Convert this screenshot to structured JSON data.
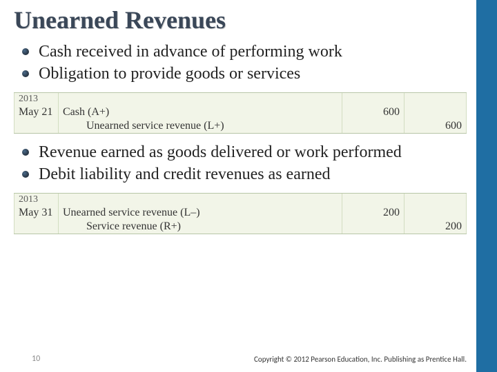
{
  "title": "Unearned Revenues",
  "bullets_top": [
    "Cash received in advance of performing work",
    "Obligation to provide goods or services"
  ],
  "journal1": {
    "year": "2013",
    "date": "May 21",
    "line1_desc": "Cash     (A+)",
    "line1_debit": "600",
    "line2_desc": "Unearned service revenue       (L+)",
    "line2_credit": "600"
  },
  "bullets_mid": [
    "Revenue earned as goods delivered or work performed",
    "Debit liability and credit revenues as earned"
  ],
  "journal2": {
    "year": "2013",
    "date": "May 31",
    "line1_desc": "Unearned service revenue       (L–)",
    "line1_debit": "200",
    "line2_desc": "Service revenue       (R+)",
    "line2_credit": "200"
  },
  "page_number": "10",
  "copyright": "Copyright © 2012 Pearson Education, Inc. Publishing as Prentice Hall."
}
